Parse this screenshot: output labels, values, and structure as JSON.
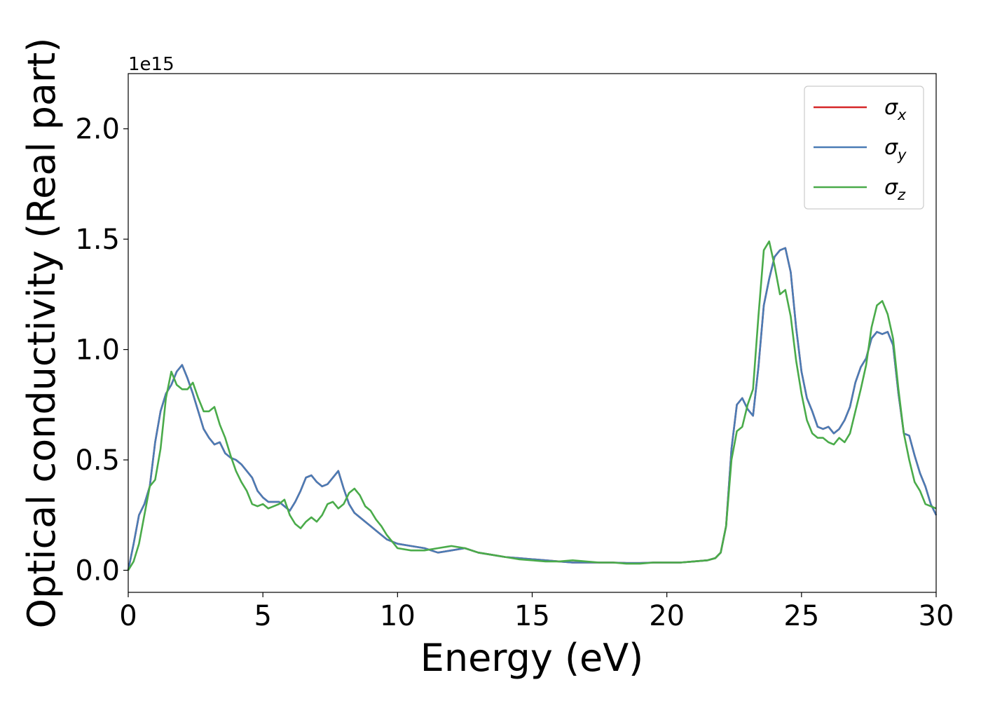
{
  "chart_data": {
    "type": "line",
    "xlabel": "Energy (eV)",
    "ylabel": "Optical conductivity (Real part)",
    "offset_text": "1e15",
    "xlim": [
      0,
      30
    ],
    "ylim": [
      -0.1,
      2.25
    ],
    "y_scale_exponent": 15,
    "x_ticks": [
      0,
      5,
      10,
      15,
      20,
      25,
      30
    ],
    "y_ticks": [
      0.0,
      0.5,
      1.0,
      1.5,
      2.0
    ],
    "x_tick_labels": [
      "0",
      "5",
      "10",
      "15",
      "20",
      "25",
      "30"
    ],
    "y_tick_labels": [
      "0.0",
      "0.5",
      "1.0",
      "1.5",
      "2.0"
    ],
    "grid": false,
    "legend": {
      "position": "top-right",
      "entries": [
        {
          "symbol": "σ",
          "subscript": "x",
          "color": "#d62728"
        },
        {
          "symbol": "σ",
          "subscript": "y",
          "color": "#4a7cb5"
        },
        {
          "symbol": "σ",
          "subscript": "z",
          "color": "#4aab4a"
        }
      ]
    },
    "series": [
      {
        "color": "#d62728",
        "x": [
          0,
          0.2,
          0.4,
          0.6,
          0.8,
          1.0,
          1.2,
          1.4,
          1.6,
          1.8,
          2.0,
          2.2,
          2.4,
          2.6,
          2.8,
          3.0,
          3.2,
          3.4,
          3.6,
          3.8,
          4.0,
          4.2,
          4.4,
          4.6,
          4.8,
          5.0,
          5.2,
          5.4,
          5.6,
          5.8,
          6.0,
          6.2,
          6.4,
          6.6,
          6.8,
          7.0,
          7.2,
          7.4,
          7.6,
          7.8,
          8.0,
          8.2,
          8.4,
          8.6,
          8.8,
          9.0,
          9.2,
          9.4,
          9.6,
          9.8,
          10.0,
          10.5,
          11.0,
          11.5,
          12.0,
          12.5,
          13.0,
          13.5,
          14.0,
          14.5,
          15.0,
          15.5,
          16.0,
          16.5,
          17.0,
          17.5,
          18.0,
          18.5,
          19.0,
          19.5,
          20.0,
          20.5,
          21.0,
          21.5,
          21.8,
          22.0,
          22.2,
          22.4,
          22.6,
          22.8,
          23.0,
          23.2,
          23.4,
          23.6,
          23.8,
          24.0,
          24.2,
          24.4,
          24.6,
          24.8,
          25.0,
          25.2,
          25.4,
          25.6,
          25.8,
          26.0,
          26.2,
          26.4,
          26.6,
          26.8,
          27.0,
          27.2,
          27.4,
          27.6,
          27.8,
          28.0,
          28.2,
          28.4,
          28.6,
          28.8,
          29.0,
          29.2,
          29.4,
          29.6,
          29.8,
          30.0
        ],
        "y": [
          0.0,
          0.12,
          0.25,
          0.3,
          0.38,
          0.58,
          0.72,
          0.8,
          0.84,
          0.9,
          0.93,
          0.87,
          0.8,
          0.72,
          0.64,
          0.6,
          0.57,
          0.58,
          0.53,
          0.51,
          0.5,
          0.48,
          0.45,
          0.42,
          0.36,
          0.33,
          0.31,
          0.31,
          0.31,
          0.29,
          0.27,
          0.31,
          0.36,
          0.42,
          0.43,
          0.4,
          0.38,
          0.39,
          0.42,
          0.45,
          0.37,
          0.3,
          0.26,
          0.24,
          0.22,
          0.2,
          0.18,
          0.16,
          0.14,
          0.13,
          0.12,
          0.11,
          0.1,
          0.08,
          0.09,
          0.1,
          0.08,
          0.07,
          0.06,
          0.055,
          0.05,
          0.045,
          0.04,
          0.035,
          0.035,
          0.035,
          0.035,
          0.033,
          0.033,
          0.035,
          0.035,
          0.035,
          0.04,
          0.045,
          0.055,
          0.08,
          0.2,
          0.55,
          0.75,
          0.78,
          0.73,
          0.7,
          0.92,
          1.2,
          1.32,
          1.42,
          1.45,
          1.46,
          1.35,
          1.1,
          0.9,
          0.78,
          0.72,
          0.65,
          0.64,
          0.65,
          0.62,
          0.64,
          0.68,
          0.74,
          0.85,
          0.92,
          0.96,
          1.05,
          1.08,
          1.07,
          1.08,
          1.02,
          0.8,
          0.62,
          0.61,
          0.52,
          0.44,
          0.38,
          0.3,
          0.25
        ]
      },
      {
        "color": "#4a7cb5",
        "x": [
          0,
          0.2,
          0.4,
          0.6,
          0.8,
          1.0,
          1.2,
          1.4,
          1.6,
          1.8,
          2.0,
          2.2,
          2.4,
          2.6,
          2.8,
          3.0,
          3.2,
          3.4,
          3.6,
          3.8,
          4.0,
          4.2,
          4.4,
          4.6,
          4.8,
          5.0,
          5.2,
          5.4,
          5.6,
          5.8,
          6.0,
          6.2,
          6.4,
          6.6,
          6.8,
          7.0,
          7.2,
          7.4,
          7.6,
          7.8,
          8.0,
          8.2,
          8.4,
          8.6,
          8.8,
          9.0,
          9.2,
          9.4,
          9.6,
          9.8,
          10.0,
          10.5,
          11.0,
          11.5,
          12.0,
          12.5,
          13.0,
          13.5,
          14.0,
          14.5,
          15.0,
          15.5,
          16.0,
          16.5,
          17.0,
          17.5,
          18.0,
          18.5,
          19.0,
          19.5,
          20.0,
          20.5,
          21.0,
          21.5,
          21.8,
          22.0,
          22.2,
          22.4,
          22.6,
          22.8,
          23.0,
          23.2,
          23.4,
          23.6,
          23.8,
          24.0,
          24.2,
          24.4,
          24.6,
          24.8,
          25.0,
          25.2,
          25.4,
          25.6,
          25.8,
          26.0,
          26.2,
          26.4,
          26.6,
          26.8,
          27.0,
          27.2,
          27.4,
          27.6,
          27.8,
          28.0,
          28.2,
          28.4,
          28.6,
          28.8,
          29.0,
          29.2,
          29.4,
          29.6,
          29.8,
          30.0
        ],
        "y": [
          0.0,
          0.12,
          0.25,
          0.3,
          0.38,
          0.58,
          0.72,
          0.8,
          0.84,
          0.9,
          0.93,
          0.87,
          0.8,
          0.72,
          0.64,
          0.6,
          0.57,
          0.58,
          0.53,
          0.51,
          0.5,
          0.48,
          0.45,
          0.42,
          0.36,
          0.33,
          0.31,
          0.31,
          0.31,
          0.29,
          0.27,
          0.31,
          0.36,
          0.42,
          0.43,
          0.4,
          0.38,
          0.39,
          0.42,
          0.45,
          0.37,
          0.3,
          0.26,
          0.24,
          0.22,
          0.2,
          0.18,
          0.16,
          0.14,
          0.13,
          0.12,
          0.11,
          0.1,
          0.08,
          0.09,
          0.1,
          0.08,
          0.07,
          0.06,
          0.055,
          0.05,
          0.045,
          0.04,
          0.035,
          0.035,
          0.035,
          0.035,
          0.033,
          0.033,
          0.035,
          0.035,
          0.035,
          0.04,
          0.045,
          0.055,
          0.08,
          0.2,
          0.55,
          0.75,
          0.78,
          0.73,
          0.7,
          0.92,
          1.2,
          1.32,
          1.42,
          1.45,
          1.46,
          1.35,
          1.1,
          0.9,
          0.78,
          0.72,
          0.65,
          0.64,
          0.65,
          0.62,
          0.64,
          0.68,
          0.74,
          0.85,
          0.92,
          0.96,
          1.05,
          1.08,
          1.07,
          1.08,
          1.02,
          0.8,
          0.62,
          0.61,
          0.52,
          0.44,
          0.38,
          0.3,
          0.25
        ]
      },
      {
        "color": "#4aab4a",
        "x": [
          0,
          0.2,
          0.4,
          0.6,
          0.8,
          1.0,
          1.2,
          1.4,
          1.6,
          1.8,
          2.0,
          2.2,
          2.4,
          2.6,
          2.8,
          3.0,
          3.2,
          3.4,
          3.6,
          3.8,
          4.0,
          4.2,
          4.4,
          4.6,
          4.8,
          5.0,
          5.2,
          5.4,
          5.6,
          5.8,
          6.0,
          6.2,
          6.4,
          6.6,
          6.8,
          7.0,
          7.2,
          7.4,
          7.6,
          7.8,
          8.0,
          8.2,
          8.4,
          8.6,
          8.8,
          9.0,
          9.2,
          9.4,
          9.6,
          9.8,
          10.0,
          10.5,
          11.0,
          11.5,
          12.0,
          12.5,
          13.0,
          13.5,
          14.0,
          14.5,
          15.0,
          15.5,
          16.0,
          16.5,
          17.0,
          17.5,
          18.0,
          18.5,
          19.0,
          19.5,
          20.0,
          20.5,
          21.0,
          21.5,
          21.8,
          22.0,
          22.2,
          22.4,
          22.6,
          22.8,
          23.0,
          23.2,
          23.4,
          23.6,
          23.8,
          24.0,
          24.2,
          24.4,
          24.6,
          24.8,
          25.0,
          25.2,
          25.4,
          25.6,
          25.8,
          26.0,
          26.2,
          26.4,
          26.6,
          26.8,
          27.0,
          27.2,
          27.4,
          27.6,
          27.8,
          28.0,
          28.2,
          28.4,
          28.6,
          28.8,
          29.0,
          29.2,
          29.4,
          29.6,
          29.8,
          30.0
        ],
        "y": [
          0.0,
          0.04,
          0.12,
          0.25,
          0.38,
          0.41,
          0.55,
          0.78,
          0.9,
          0.84,
          0.82,
          0.82,
          0.85,
          0.78,
          0.72,
          0.72,
          0.74,
          0.66,
          0.6,
          0.52,
          0.45,
          0.4,
          0.36,
          0.3,
          0.29,
          0.3,
          0.28,
          0.29,
          0.3,
          0.32,
          0.25,
          0.21,
          0.19,
          0.22,
          0.24,
          0.22,
          0.25,
          0.3,
          0.31,
          0.28,
          0.3,
          0.35,
          0.37,
          0.34,
          0.29,
          0.27,
          0.23,
          0.2,
          0.16,
          0.13,
          0.1,
          0.09,
          0.09,
          0.1,
          0.11,
          0.1,
          0.08,
          0.07,
          0.06,
          0.05,
          0.045,
          0.04,
          0.04,
          0.045,
          0.04,
          0.035,
          0.035,
          0.03,
          0.03,
          0.035,
          0.035,
          0.035,
          0.04,
          0.045,
          0.055,
          0.08,
          0.2,
          0.5,
          0.63,
          0.65,
          0.75,
          0.82,
          1.15,
          1.45,
          1.49,
          1.38,
          1.25,
          1.27,
          1.15,
          0.95,
          0.8,
          0.68,
          0.62,
          0.6,
          0.6,
          0.58,
          0.57,
          0.6,
          0.58,
          0.62,
          0.72,
          0.82,
          0.93,
          1.1,
          1.2,
          1.22,
          1.16,
          1.05,
          0.82,
          0.62,
          0.5,
          0.4,
          0.36,
          0.3,
          0.29,
          0.28
        ]
      }
    ]
  }
}
